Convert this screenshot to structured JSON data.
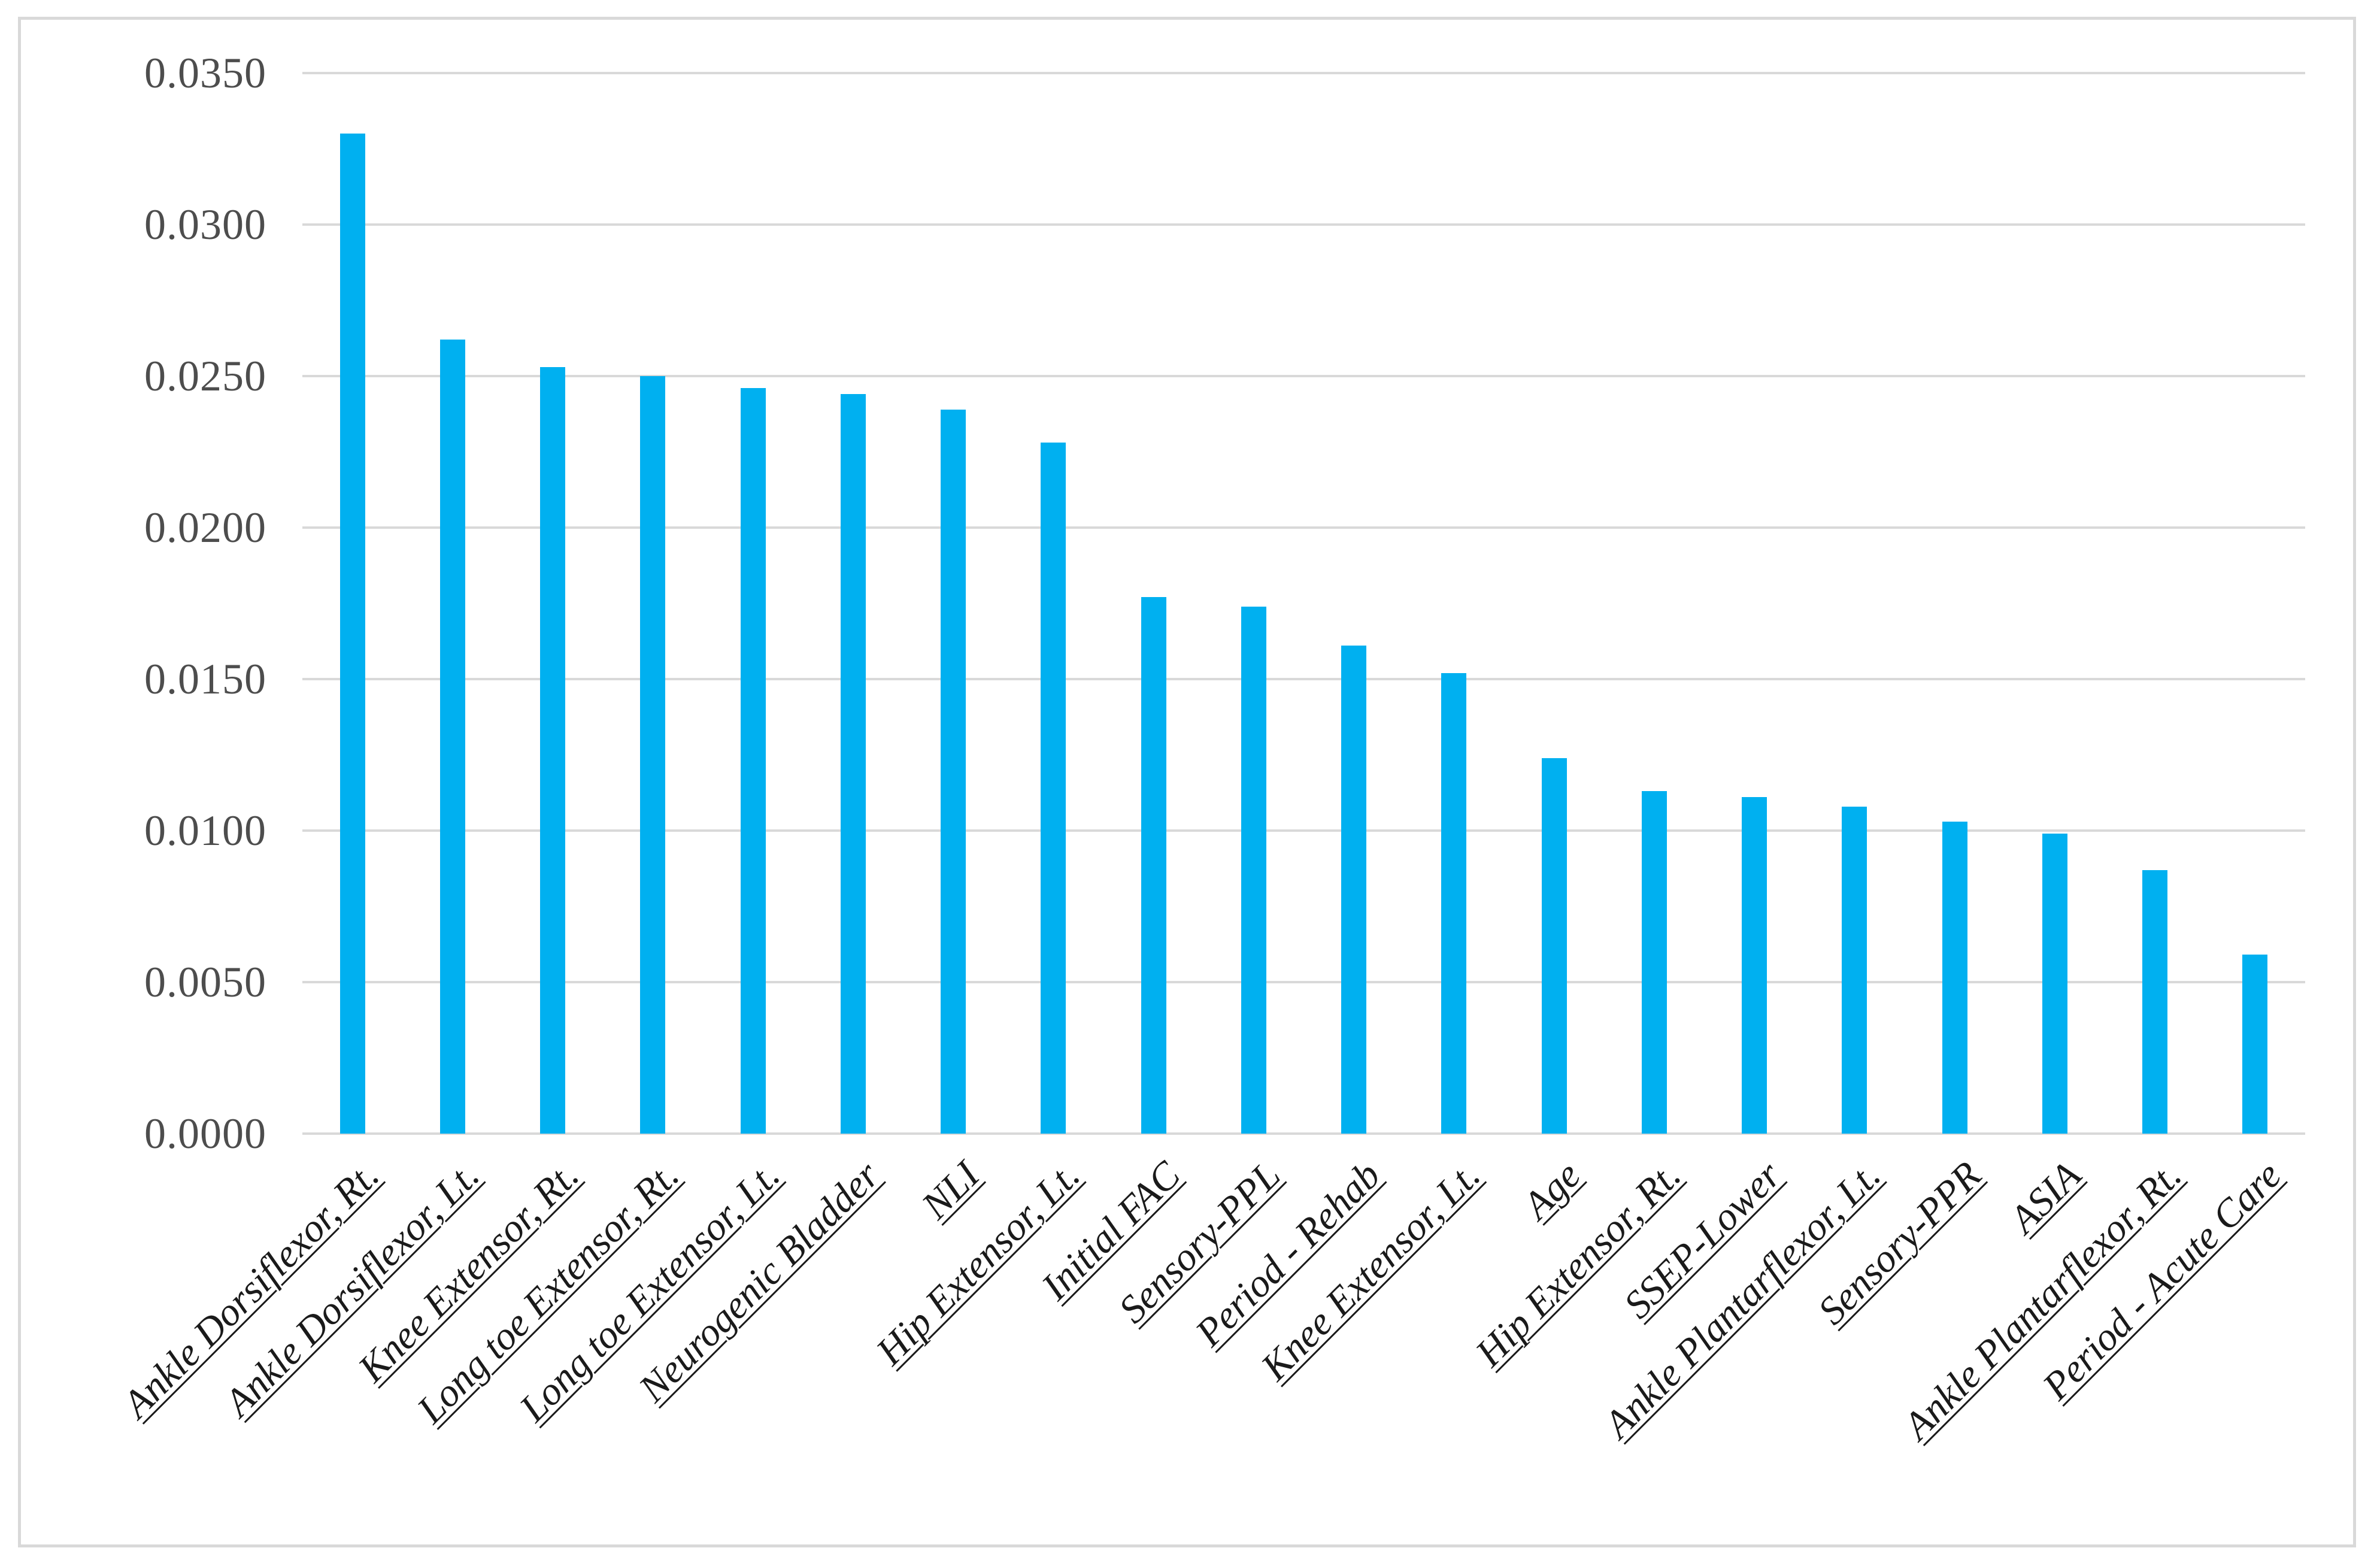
{
  "chart_data": {
    "type": "bar",
    "title": "",
    "xlabel": "",
    "ylabel": "",
    "categories": [
      "Ankle Dorsiflexor, Rt.",
      "Ankle Dorsiflexor, Lt.",
      "Knee Extensor, Rt.",
      "Long toe Extensor, Rt.",
      "Long toe Extensor, Lt.",
      "Neurogenic Bladder",
      "NLI",
      "Hip Extensor, Lt.",
      "Initial FAC",
      "Sensory-PPL",
      "Period - Rehab",
      "Knee Extensor, Lt.",
      "Age",
      "Hip Extensor, Rt.",
      "SSEP-Lower",
      "Ankle Plantarflexor, Lt.",
      "Sensory-PPR",
      "ASIA",
      "Ankle Plantarflexor, Rt.",
      "Period - Acute Care"
    ],
    "values": [
      0.033,
      0.0262,
      0.0253,
      0.025,
      0.0246,
      0.0244,
      0.0239,
      0.0228,
      0.0177,
      0.0174,
      0.0161,
      0.0152,
      0.0124,
      0.0113,
      0.0111,
      0.0108,
      0.0103,
      0.0099,
      0.0087,
      0.0059
    ],
    "ylim": [
      0.0,
      0.035
    ],
    "ytick_labels": [
      "0.0350",
      "0.0300",
      "0.0250",
      "0.0200",
      "0.0150",
      "0.0100",
      "0.0050",
      "0.0000"
    ],
    "grid": "horizontal",
    "legend_position": "none",
    "colors": {
      "bar": "#00B0F0",
      "gridline": "#D9D9D9",
      "frame_border": "#D9D9D9",
      "y_axis_text": "#4D4D4D",
      "category_text": "#1A1A1A",
      "background": "#FFFFFF"
    }
  }
}
